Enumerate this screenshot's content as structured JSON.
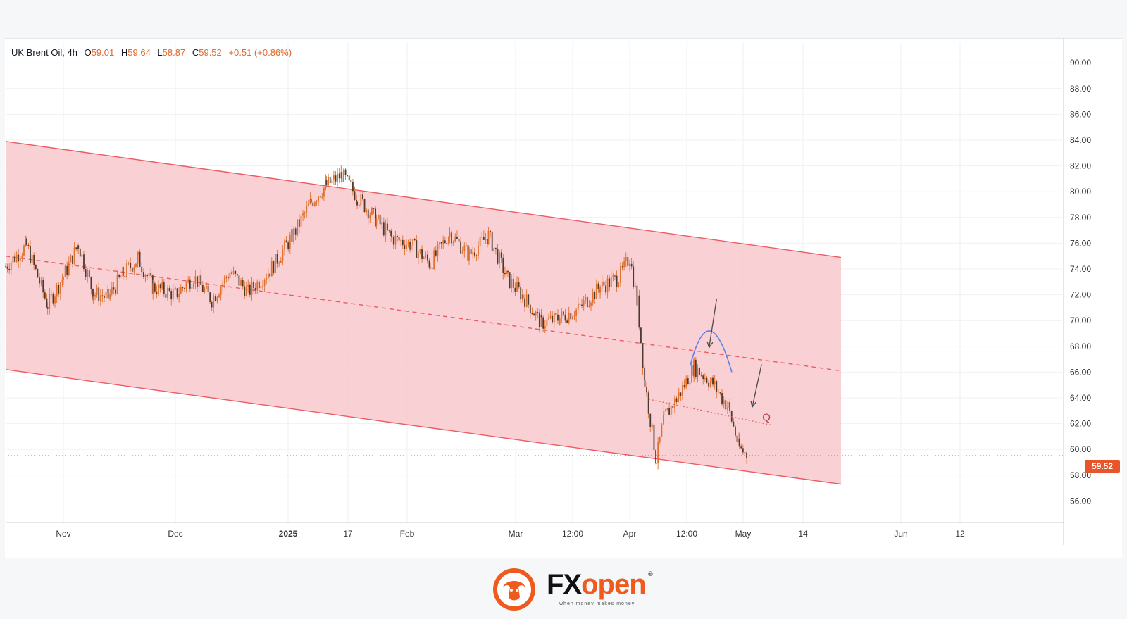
{
  "legend": {
    "symbol": "UK Brent Oil",
    "interval": "4h",
    "open_label": "O",
    "open": "59.01",
    "high_label": "H",
    "high": "59.64",
    "low_label": "L",
    "low": "58.87",
    "close_label": "C",
    "close": "59.52",
    "change": "+0.51",
    "change_pct": "(+0.86%)"
  },
  "price_tag": "59.52",
  "annotation_label": "Q",
  "brand": {
    "name_fx": "FX",
    "name_open": "open",
    "registered": "®",
    "tagline": "when money makes money",
    "color_fx": "#111111",
    "color_open": "#ef5b1e"
  },
  "colors": {
    "channel_fill": "#f8c8cb",
    "channel_line": "#ec5a63",
    "candle": "#e0702e",
    "arc": "#5b7fe8",
    "arrow": "#4a4a4a",
    "price_line": "#e8552b"
  },
  "chart_data": {
    "type": "line",
    "title": "",
    "xlabel": "",
    "ylabel": "",
    "ylim": [
      54.5,
      91
    ],
    "y_ticks": [
      "90.00",
      "88.00",
      "86.00",
      "84.00",
      "82.00",
      "80.00",
      "78.00",
      "76.00",
      "74.00",
      "72.00",
      "70.00",
      "68.00",
      "66.00",
      "64.00",
      "62.00",
      "60.00",
      "58.00",
      "56.00"
    ],
    "x_ticks": [
      "Nov",
      "Dec",
      "2025",
      "17",
      "Feb",
      "Mar",
      "12:00",
      "Apr",
      "12:00",
      "May",
      "14",
      "Jun",
      "12"
    ],
    "grid": true,
    "series": [
      {
        "x": [
          "Oct 21",
          "Oct 25",
          "Oct 29",
          "Nov 1",
          "Nov 5",
          "Nov 9",
          "Nov 13",
          "Nov 17",
          "Nov 21",
          "Nov 25",
          "Dec 1",
          "Dec 6",
          "Dec 11",
          "Dec 16",
          "Dec 21",
          "Dec 27",
          "Jan 2",
          "Jan 7",
          "Jan 11",
          "Jan 15",
          "Jan 19",
          "Jan 24",
          "Jan 28",
          "Feb 2",
          "Feb 7",
          "Feb 12",
          "Feb 17",
          "Feb 22",
          "Feb 27",
          "Mar 3",
          "Mar 8",
          "Mar 13",
          "Mar 18",
          "Mar 24",
          "Mar 29",
          "Apr 1",
          "Apr 3",
          "Apr 5",
          "Apr 8",
          "Apr 10",
          "Apr 14",
          "Apr 18",
          "Apr 23",
          "Apr 27",
          "Apr 30",
          "May 2"
        ],
        "values": [
          74.2,
          75.8,
          71.2,
          73.4,
          75.9,
          72.1,
          71.8,
          73.6,
          74.8,
          72.6,
          72.0,
          73.4,
          71.6,
          73.8,
          72.2,
          73.9,
          76.5,
          79.2,
          80.5,
          81.3,
          79.6,
          77.8,
          76.4,
          75.9,
          74.4,
          76.8,
          75.1,
          76.6,
          73.2,
          71.9,
          69.8,
          70.2,
          70.9,
          72.6,
          73.3,
          74.9,
          71.4,
          65.2,
          59.2,
          62.4,
          64.2,
          66.4,
          65.1,
          63.3,
          60.1,
          59.52
        ]
      }
    ],
    "channel": {
      "upper": [
        {
          "x": "Oct 21",
          "y": 83.9
        },
        {
          "x": "May 19",
          "y": 74.9
        }
      ],
      "middle": [
        {
          "x": "Oct 21",
          "y": 75.0
        },
        {
          "x": "May 19",
          "y": 66.1
        }
      ],
      "lower": [
        {
          "x": "Oct 21",
          "y": 66.2
        },
        {
          "x": "May 19",
          "y": 57.3
        }
      ]
    },
    "annotations": [
      {
        "type": "arc",
        "from": {
          "x": "Apr 17",
          "y": 66.5
        },
        "peak": {
          "x": "Apr 22",
          "y": 69.4
        },
        "to": {
          "x": "Apr 28",
          "y": 66.0
        }
      },
      {
        "type": "arrow",
        "from": {
          "x": "Apr 24",
          "y": 71.7
        },
        "to": {
          "x": "Apr 22",
          "y": 67.9
        }
      },
      {
        "type": "arrow",
        "from": {
          "x": "May 5",
          "y": 66.6
        },
        "to": {
          "x": "May 3",
          "y": 63.3
        }
      },
      {
        "type": "dotted-line",
        "label": "Q",
        "from": {
          "x": "Apr 6",
          "y": 63.9
        },
        "to": {
          "x": "May 7",
          "y": 61.9
        }
      },
      {
        "type": "price-line",
        "y": 59.52
      }
    ]
  }
}
